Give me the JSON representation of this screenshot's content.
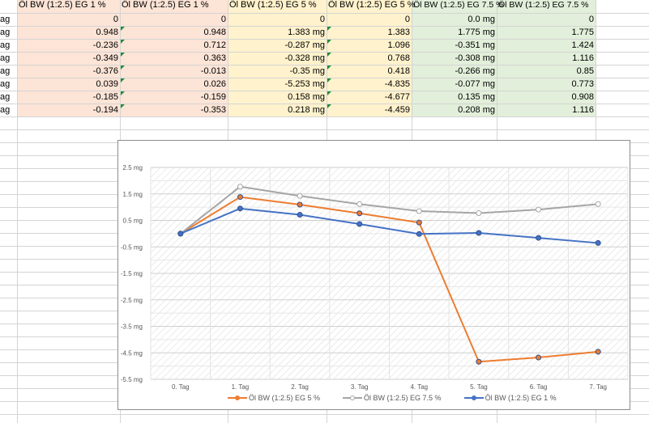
{
  "sheet": {
    "row_labels": [
      "ag",
      "ag",
      "ag",
      "ag",
      "ag",
      "ag",
      "ag",
      "ag"
    ],
    "headers": [
      "Öl BW (1:2.5) EG 1 %",
      "Öl BW (1:2.5) EG 1 %",
      "Öl BW (1:2.5) EG 5 %",
      "Öl BW (1:2.5) EG 5 %",
      "Öl BW (1:2.5) EG 7.5 %",
      "Öl BW (1:2.5) EG 7.5 %"
    ],
    "rows": [
      [
        "0",
        "0",
        "0",
        "0",
        "0.0 mg",
        "0"
      ],
      [
        "0.948",
        "0.948",
        "1.383 mg",
        "1.383",
        "1.775 mg",
        "1.775"
      ],
      [
        "-0.236",
        "0.712",
        "-0.287 mg",
        "1.096",
        "-0.351 mg",
        "1.424"
      ],
      [
        "-0.349",
        "0.363",
        "-0.328 mg",
        "0.768",
        "-0.308 mg",
        "1.116"
      ],
      [
        "-0.376",
        "-0.013",
        "-0.35 mg",
        "0.418",
        "-0.266 mg",
        "0.85"
      ],
      [
        "0.039",
        "0.026",
        "-5.253 mg",
        "-4.835",
        "-0.077 mg",
        "0.773"
      ],
      [
        "-0.185",
        "-0.159",
        "0.158 mg",
        "-4.677",
        "0.135 mg",
        "0.908"
      ],
      [
        "-0.194",
        "-0.353",
        "0.218 mg",
        "-4.459",
        "0.208 mg",
        "1.116"
      ]
    ],
    "colors": {
      "salmon": "#fce4d6",
      "yellow": "#fff2cc",
      "green": "#e2efda",
      "flag": "#1e8c3a"
    }
  },
  "chart_data": {
    "type": "line",
    "categories": [
      "0. Tag",
      "1. Tag",
      "2. Tag",
      "3. Tag",
      "4. Tag",
      "5. Tag",
      "6. Tag",
      "7. Tag"
    ],
    "yticks": [
      "2.5 mg",
      "1.5 mg",
      "0.5 mg",
      "-0.5 mg",
      "-1.5 mg",
      "-2.5 mg",
      "-3.5 mg",
      "-4.5 mg",
      "-5.5 mg"
    ],
    "ylim": [
      -5.5,
      2.5
    ],
    "series": [
      {
        "name": "Öl BW (1:2.5) EG 5 %",
        "color": "#ed7d31",
        "marker": "filled",
        "values": [
          0,
          1.383,
          1.096,
          0.768,
          0.418,
          -4.835,
          -4.677,
          -4.459
        ]
      },
      {
        "name": "Öl BW (1:2.5) EG 7.5 %",
        "color": "#a5a5a5",
        "marker": "hollow",
        "values": [
          0,
          1.775,
          1.424,
          1.116,
          0.85,
          0.773,
          0.908,
          1.116
        ]
      },
      {
        "name": "Öl BW (1:2.5) EG 1 %",
        "color": "#4472c4",
        "marker": "filled",
        "values": [
          0,
          0.948,
          0.712,
          0.363,
          -0.013,
          0.026,
          -0.159,
          -0.353
        ]
      }
    ],
    "grid": true,
    "legend": "bottom"
  }
}
